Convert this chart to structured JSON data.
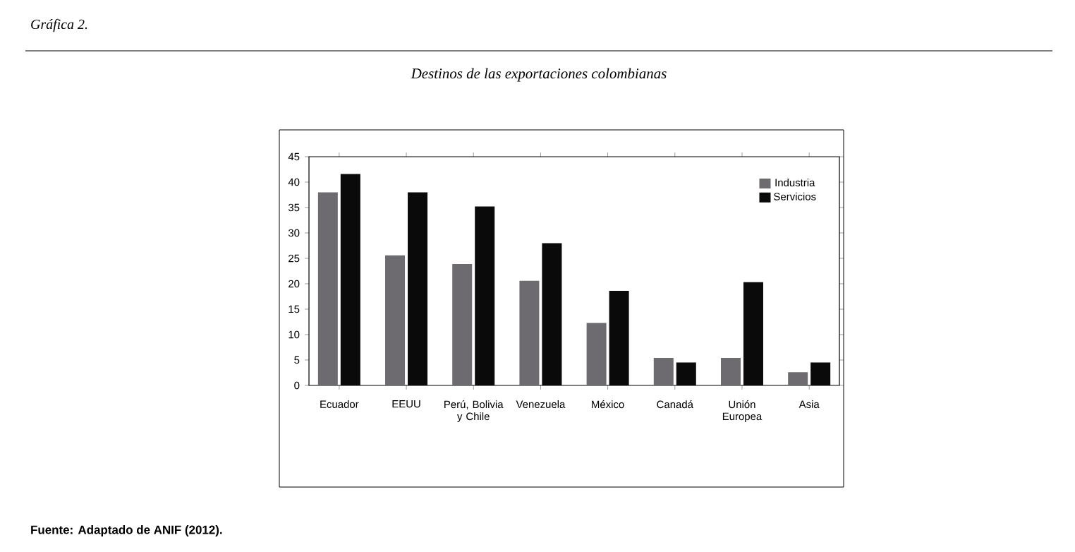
{
  "chart_data": {
    "type": "bar",
    "title": "Destinos de las exportaciones colombianas",
    "annotations": [
      "Gráfica 2.",
      "Fuente: Adaptado de ANIF (2012)."
    ],
    "categories": [
      "Ecuador",
      "EEUU",
      "Perú, Bolivia y Chile",
      "Venezuela",
      "México",
      "Canadá",
      "Unión Europea",
      "Asia"
    ],
    "series": [
      {
        "name": "Industria",
        "color": "#6d6b70",
        "values": [
          38.0,
          25.6,
          23.9,
          20.6,
          12.3,
          5.4,
          5.4,
          2.6
        ]
      },
      {
        "name": "Servicios",
        "color": "#0a0a0a",
        "values": [
          41.6,
          38.0,
          35.2,
          28.0,
          18.6,
          4.5,
          20.3,
          4.5
        ]
      }
    ],
    "ylim": [
      0,
      45
    ],
    "yticks": [
      0,
      5,
      10,
      15,
      20,
      25,
      30,
      35,
      40,
      45
    ],
    "grid": false,
    "legend": "top right"
  }
}
